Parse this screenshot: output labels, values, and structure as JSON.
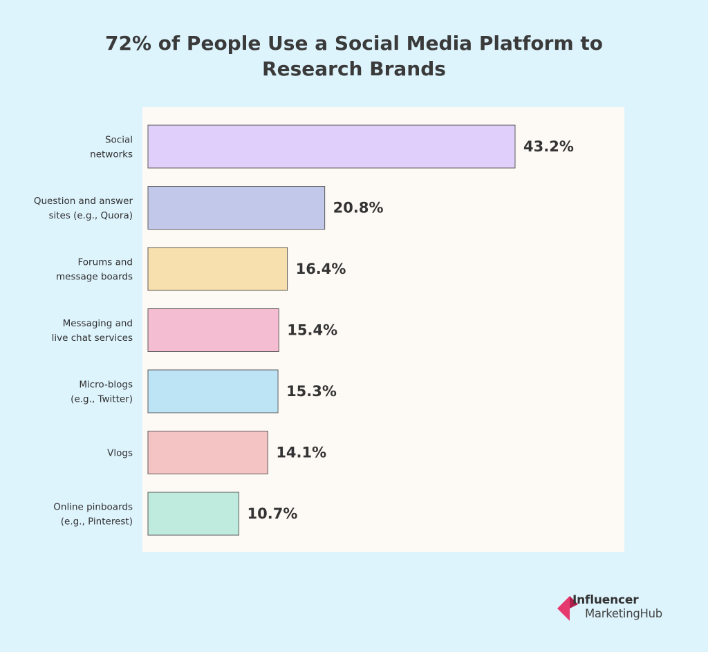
{
  "chart_data": {
    "type": "bar",
    "orientation": "horizontal",
    "title": "72% of People Use a Social Media Platform to Research Brands",
    "title_lines": [
      "72% of People Use a Social Media Platform to",
      "Research Brands"
    ],
    "categories": [
      [
        "Social",
        "networks"
      ],
      [
        "Question and answer",
        "sites (e.g., Quora)"
      ],
      [
        "Forums and",
        "message boards"
      ],
      [
        "Messaging and",
        "live chat services"
      ],
      [
        "Micro-blogs",
        "(e.g., Twitter)"
      ],
      [
        "Vlogs"
      ],
      [
        "Online pinboards",
        "(e.g., Pinterest)"
      ]
    ],
    "values": [
      43.2,
      20.8,
      16.4,
      15.4,
      15.3,
      14.1,
      10.7
    ],
    "value_labels": [
      "43.2%",
      "20.8%",
      "16.4%",
      "15.4%",
      "15.3%",
      "14.1%",
      "10.7%"
    ],
    "colors": [
      "#dfcffa",
      "#c2c8ea",
      "#f8e0ae",
      "#f5bdd1",
      "#bde4f5",
      "#f4c3c3",
      "#bfebdf"
    ],
    "xlim": [
      0,
      43.2
    ],
    "grid": false,
    "legend": "none"
  },
  "brand": {
    "line1": "Influencer",
    "line2": "MarketingHub",
    "mark_colors": [
      "#e63a6e",
      "#b01e4c"
    ]
  }
}
